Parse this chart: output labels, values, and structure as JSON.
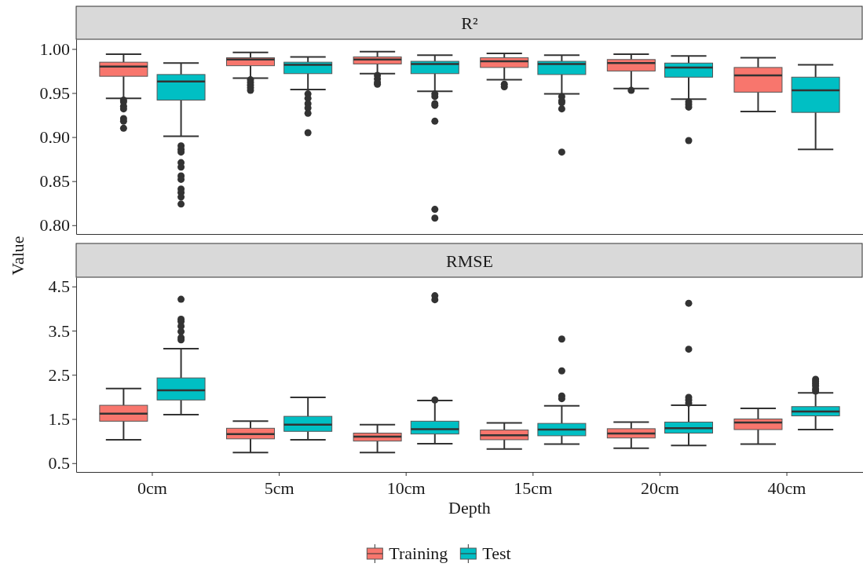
{
  "chart_data": [
    {
      "type": "box",
      "title": "R²",
      "ylabel": "Value",
      "categories": [
        null,
        null,
        null,
        null,
        null,
        null
      ],
      "ylim": [
        0.79,
        1.011
      ],
      "yticks": [
        {
          "value": 0.8,
          "label": "0.80"
        },
        {
          "value": 0.85,
          "label": "0.85"
        },
        {
          "value": 0.9,
          "label": "0.90"
        },
        {
          "value": 0.95,
          "label": "0.95"
        },
        {
          "value": 1.0,
          "label": "1.00"
        }
      ],
      "tick_labels": "y",
      "grid": false,
      "legend": false,
      "series": [
        {
          "color": "#f8766d",
          "boxes": [
            {
              "low": 0.944,
              "q1": 0.969,
              "median": 0.98,
              "q3": 0.985,
              "high": 0.994,
              "outliers": [
                0.942,
                0.94,
                0.935,
                0.932,
                0.921,
                0.918,
                0.91
              ]
            },
            {
              "low": 0.967,
              "q1": 0.981,
              "median": 0.988,
              "q3": 0.99,
              "high": 0.996,
              "outliers": [
                0.965,
                0.962,
                0.959,
                0.956,
                0.953
              ]
            },
            {
              "low": 0.972,
              "q1": 0.983,
              "median": 0.988,
              "q3": 0.991,
              "high": 0.997,
              "outliers": [
                0.97,
                0.966,
                0.962,
                0.96
              ]
            },
            {
              "low": 0.965,
              "q1": 0.979,
              "median": 0.986,
              "q3": 0.99,
              "high": 0.995,
              "outliers": [
                0.96,
                0.957
              ]
            },
            {
              "low": 0.955,
              "q1": 0.975,
              "median": 0.984,
              "q3": 0.988,
              "high": 0.994,
              "outliers": [
                0.953
              ]
            },
            {
              "low": 0.929,
              "q1": 0.951,
              "median": 0.97,
              "q3": 0.979,
              "high": 0.99
            }
          ]
        },
        {
          "color": "#00bfc4",
          "boxes": [
            {
              "low": 0.901,
              "q1": 0.942,
              "median": 0.963,
              "q3": 0.971,
              "high": 0.984,
              "outliers": [
                0.89,
                0.886,
                0.883,
                0.871,
                0.866,
                0.856,
                0.852,
                0.841,
                0.837,
                0.832,
                0.824
              ]
            },
            {
              "low": 0.954,
              "q1": 0.972,
              "median": 0.982,
              "q3": 0.985,
              "high": 0.991,
              "outliers": [
                0.949,
                0.944,
                0.938,
                0.933,
                0.927,
                0.905
              ]
            },
            {
              "low": 0.952,
              "q1": 0.972,
              "median": 0.983,
              "q3": 0.986,
              "high": 0.993,
              "outliers": [
                0.949,
                0.946,
                0.938,
                0.936,
                0.918,
                0.818,
                0.808
              ]
            },
            {
              "low": 0.949,
              "q1": 0.971,
              "median": 0.983,
              "q3": 0.986,
              "high": 0.993,
              "outliers": [
                0.946,
                0.941,
                0.939,
                0.932,
                0.883
              ]
            },
            {
              "low": 0.943,
              "q1": 0.968,
              "median": 0.979,
              "q3": 0.984,
              "high": 0.992,
              "outliers": [
                0.94,
                0.937,
                0.934,
                0.896
              ]
            },
            {
              "low": 0.886,
              "q1": 0.928,
              "median": 0.953,
              "q3": 0.968,
              "high": 0.982
            }
          ]
        }
      ]
    },
    {
      "type": "box",
      "title": "RMSE",
      "xlabel": "Depth",
      "categories": [
        "0cm",
        "5cm",
        "10cm",
        "15cm",
        "20cm",
        "40cm"
      ],
      "ylim": [
        0.3,
        4.71
      ],
      "yticks": [
        0.5,
        1.5,
        2.5,
        3.5,
        4.5
      ],
      "grid": false,
      "legend": "bottom",
      "series": [
        {
          "name": "Training",
          "color": "#f8766d",
          "boxes": [
            {
              "low": 1.03,
              "q1": 1.45,
              "median": 1.62,
              "q3": 1.81,
              "high": 2.19
            },
            {
              "low": 0.74,
              "q1": 1.05,
              "median": 1.16,
              "q3": 1.29,
              "high": 1.45
            },
            {
              "low": 0.74,
              "q1": 1.0,
              "median": 1.1,
              "q3": 1.18,
              "high": 1.37
            },
            {
              "low": 0.82,
              "q1": 1.03,
              "median": 1.13,
              "q3": 1.25,
              "high": 1.41
            },
            {
              "low": 0.84,
              "q1": 1.07,
              "median": 1.17,
              "q3": 1.28,
              "high": 1.43
            },
            {
              "low": 0.93,
              "q1": 1.26,
              "median": 1.42,
              "q3": 1.5,
              "high": 1.74
            }
          ]
        },
        {
          "name": "Test",
          "color": "#00bfc4",
          "boxes": [
            {
              "low": 1.6,
              "q1": 1.93,
              "median": 2.15,
              "q3": 2.43,
              "high": 3.09,
              "outliers": [
                4.21,
                3.76,
                3.71,
                3.6,
                3.48,
                3.34,
                3.29
              ]
            },
            {
              "low": 1.03,
              "q1": 1.22,
              "median": 1.37,
              "q3": 1.56,
              "high": 1.99
            },
            {
              "low": 0.94,
              "q1": 1.16,
              "median": 1.27,
              "q3": 1.45,
              "high": 1.92,
              "outliers": [
                1.93,
                4.2,
                4.29
              ]
            },
            {
              "low": 0.93,
              "q1": 1.12,
              "median": 1.26,
              "q3": 1.4,
              "high": 1.8,
              "outliers": [
                3.31,
                2.59,
                2.02,
                1.96
              ]
            },
            {
              "low": 0.9,
              "q1": 1.18,
              "median": 1.29,
              "q3": 1.43,
              "high": 1.81,
              "outliers": [
                4.12,
                3.08,
                1.99,
                1.93,
                1.86
              ]
            },
            {
              "low": 1.26,
              "q1": 1.57,
              "median": 1.67,
              "q3": 1.78,
              "high": 2.09,
              "outliers": [
                2.4,
                2.35,
                2.3,
                2.25,
                2.18,
                2.13
              ]
            }
          ]
        }
      ]
    }
  ]
}
